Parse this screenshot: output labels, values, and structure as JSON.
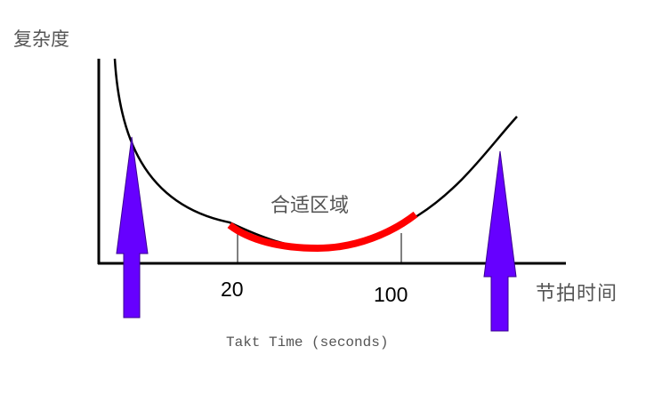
{
  "labels": {
    "y_axis": "复杂度",
    "x_axis": "节拍时间",
    "optimal_zone": "合适区域",
    "tick_low": "20",
    "tick_high": "100",
    "caption": "Takt Time (seconds)"
  },
  "colors": {
    "curve": "#000000",
    "optimal_zone": "#ff0000",
    "arrows": "#6600ff",
    "text": "#555555"
  }
}
